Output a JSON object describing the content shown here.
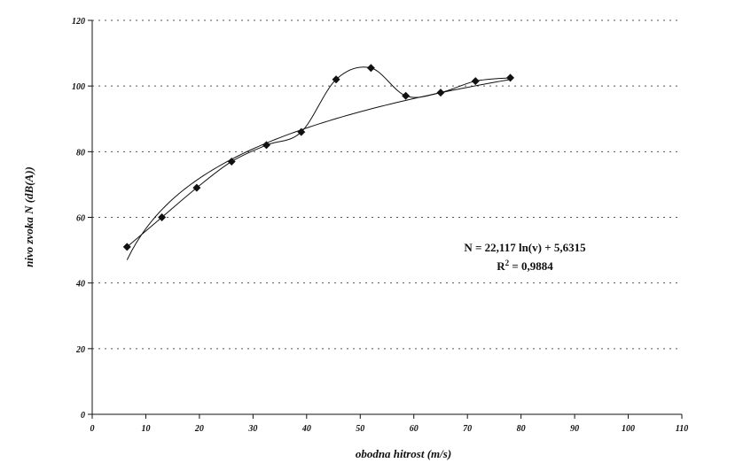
{
  "chart_data": {
    "type": "scatter",
    "xlabel": "obodna hitrost (m/s)",
    "ylabel": "nivo zvoka N (dB(A))",
    "xlim": [
      0,
      110
    ],
    "ylim": [
      0,
      120
    ],
    "xticks": [
      "0",
      "10",
      "20",
      "30",
      "40",
      "50",
      "60",
      "70",
      "80",
      "90",
      "100",
      "110"
    ],
    "yticks": [
      "0",
      "20",
      "40",
      "60",
      "80",
      "100",
      "120"
    ],
    "grid": "horizontal dotted",
    "series": [
      {
        "marker": "diamond",
        "connect": "smooth",
        "x": [
          6.5,
          13,
          19.5,
          26,
          32.5,
          39,
          45.5,
          52,
          58.5,
          65,
          71.5,
          78
        ],
        "y": [
          51,
          60,
          69,
          77,
          82,
          86,
          102,
          105.5,
          97,
          98,
          101.5,
          102.5
        ]
      }
    ],
    "trendline": {
      "type": "logarithmic",
      "a": 22.117,
      "b": 5.6315,
      "x_range": [
        6.5,
        78
      ]
    },
    "annotations": {
      "equation": "N = 22,117 ln(v) + 5,6315",
      "r2_prefix": "R",
      "r2_sup": "2",
      "r2_value": " = 0,9884"
    }
  }
}
